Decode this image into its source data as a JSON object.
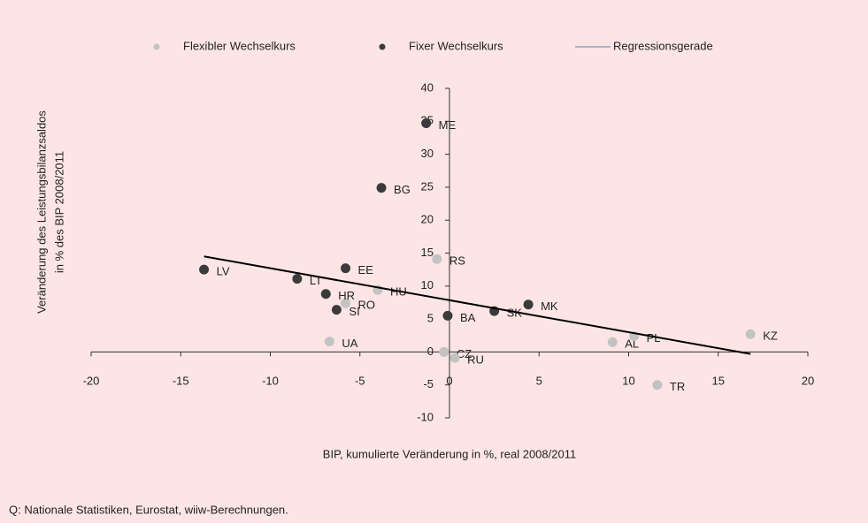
{
  "chart_data": {
    "type": "scatter",
    "x_label": "BIP, kumulierte Veränderung in %, real 2008/2011",
    "y_label": [
      "Veränderung des Leistungsbilanzsaldos",
      "in % des BIP 2008/2011"
    ],
    "source": "Q: Nationale Statistiken, Eurostat, wiiw-Berechnungen.",
    "xlim": [
      -20,
      20
    ],
    "xticks": [
      -20,
      -15,
      -10,
      -5,
      0,
      5,
      10,
      15,
      20
    ],
    "ylim": [
      -10,
      40
    ],
    "yticks": [
      -10,
      -5,
      0,
      5,
      10,
      15,
      20,
      25,
      30,
      35,
      40
    ],
    "series": [
      {
        "name": "Flexibler Wechselkurs",
        "color": "#c3c3c3",
        "labels": [
          "RS",
          "RO",
          "HU",
          "UA",
          "CZ",
          "RU",
          "AL",
          "PL",
          "TR",
          "KZ"
        ],
        "x": [
          -0.7,
          -5.8,
          -4.0,
          -6.7,
          -0.3,
          0.3,
          9.1,
          10.3,
          11.6,
          16.8
        ],
        "y": [
          14.1,
          7.4,
          9.4,
          1.6,
          0,
          -0.9,
          1.5,
          2.4,
          -5,
          2.7
        ]
      },
      {
        "name": "Fixer Wechselkurs",
        "color": "#3b3b3b",
        "labels": [
          "ME",
          "BG",
          "EE",
          "LV",
          "LT",
          "HR",
          "SI",
          "BA",
          "SK",
          "MK"
        ],
        "x": [
          -1.3,
          -3.8,
          -5.8,
          -13.7,
          -8.5,
          -6.9,
          -6.3,
          -0.1,
          2.5,
          4.4
        ],
        "y": [
          34.7,
          24.9,
          12.7,
          12.5,
          11.1,
          8.8,
          6.4,
          5.5,
          6.2,
          7.2
        ]
      },
      {
        "name": "Regressionsgerade",
        "color": "#000000",
        "line": true,
        "x": [
          -13.7,
          16.8
        ],
        "y": [
          14.5,
          -0.3
        ]
      }
    ]
  }
}
